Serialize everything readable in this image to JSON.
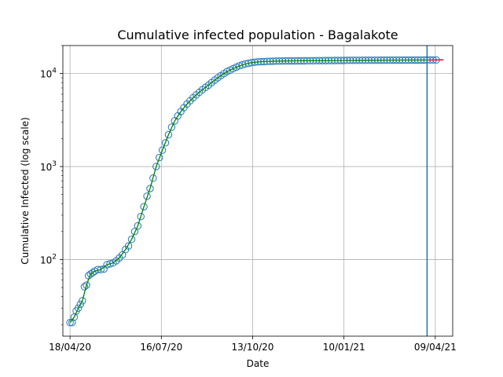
{
  "chart_data": {
    "type": "scatter",
    "title": "Cumulative infected population - Bagalakote",
    "xlabel": "Date",
    "ylabel": "Cumulative Infected (log scale)",
    "yscale": "log",
    "grid": true,
    "xlim": [
      "2020-04-11",
      "2021-04-26"
    ],
    "ylim": [
      15,
      20000
    ],
    "x_tick_labels": [
      "18/04/20",
      "16/07/20",
      "13/10/20",
      "10/01/21",
      "09/04/21"
    ],
    "x_ticks": [
      "2020-04-18",
      "2020-07-16",
      "2020-10-13",
      "2021-01-10",
      "2021-04-09"
    ],
    "y_ticks": [
      {
        "value": 100,
        "base": "10",
        "exp": "2"
      },
      {
        "value": 1000,
        "base": "10",
        "exp": "3"
      },
      {
        "value": 10000,
        "base": "10",
        "exp": "4"
      }
    ],
    "vertical_line": {
      "x": "2021-04-01",
      "color": "#1f77b4"
    },
    "series": [
      {
        "kind": "observed-markers",
        "marker": "open-circle",
        "color": "#1f77b4",
        "points": [
          [
            "2020-04-18",
            21
          ],
          [
            "2020-04-20",
            21
          ],
          [
            "2020-04-22",
            24
          ],
          [
            "2020-04-24",
            28
          ],
          [
            "2020-04-26",
            30
          ],
          [
            "2020-04-28",
            33
          ],
          [
            "2020-04-30",
            36
          ],
          [
            "2020-05-02",
            51
          ],
          [
            "2020-05-04",
            53
          ],
          [
            "2020-05-06",
            67
          ],
          [
            "2020-05-08",
            70
          ],
          [
            "2020-05-10",
            72
          ],
          [
            "2020-05-12",
            75
          ],
          [
            "2020-05-15",
            78
          ],
          [
            "2020-05-18",
            78
          ],
          [
            "2020-05-21",
            79
          ],
          [
            "2020-05-24",
            88
          ],
          [
            "2020-05-27",
            90
          ],
          [
            "2020-05-30",
            92
          ],
          [
            "2020-06-02",
            97
          ],
          [
            "2020-06-05",
            104
          ],
          [
            "2020-06-08",
            112
          ],
          [
            "2020-06-11",
            128
          ],
          [
            "2020-06-14",
            140
          ],
          [
            "2020-06-17",
            165
          ],
          [
            "2020-06-20",
            200
          ],
          [
            "2020-06-23",
            230
          ],
          [
            "2020-06-26",
            290
          ],
          [
            "2020-06-29",
            370
          ],
          [
            "2020-07-02",
            480
          ],
          [
            "2020-07-05",
            580
          ],
          [
            "2020-07-08",
            750
          ],
          [
            "2020-07-11",
            1000
          ],
          [
            "2020-07-14",
            1250
          ],
          [
            "2020-07-17",
            1500
          ],
          [
            "2020-07-20",
            1800
          ],
          [
            "2020-07-23",
            2200
          ],
          [
            "2020-07-26",
            2650
          ],
          [
            "2020-07-29",
            3100
          ],
          [
            "2020-08-01",
            3500
          ],
          [
            "2020-08-04",
            3900
          ],
          [
            "2020-08-07",
            4300
          ],
          [
            "2020-08-10",
            4700
          ],
          [
            "2020-08-13",
            5100
          ],
          [
            "2020-08-16",
            5500
          ],
          [
            "2020-08-19",
            5900
          ],
          [
            "2020-08-22",
            6300
          ],
          [
            "2020-08-25",
            6700
          ],
          [
            "2020-08-28",
            7100
          ],
          [
            "2020-08-31",
            7500
          ],
          [
            "2020-09-03",
            8000
          ],
          [
            "2020-09-06",
            8500
          ],
          [
            "2020-09-09",
            9000
          ],
          [
            "2020-09-12",
            9500
          ],
          [
            "2020-09-15",
            10000
          ],
          [
            "2020-09-18",
            10500
          ],
          [
            "2020-09-21",
            10900
          ],
          [
            "2020-09-24",
            11300
          ],
          [
            "2020-09-27",
            11700
          ],
          [
            "2020-09-30",
            12100
          ],
          [
            "2020-10-03",
            12400
          ],
          [
            "2020-10-06",
            12700
          ],
          [
            "2020-10-09",
            12900
          ],
          [
            "2020-10-12",
            13100
          ],
          [
            "2020-10-15",
            13250
          ],
          [
            "2020-10-18",
            13350
          ],
          [
            "2020-10-21",
            13400
          ],
          [
            "2020-10-24",
            13450
          ],
          [
            "2020-10-27",
            13500
          ],
          [
            "2020-10-30",
            13550
          ],
          [
            "2020-11-02",
            13580
          ],
          [
            "2020-11-05",
            13600
          ],
          [
            "2020-11-08",
            13620
          ],
          [
            "2020-11-11",
            13640
          ],
          [
            "2020-11-14",
            13660
          ],
          [
            "2020-11-17",
            13670
          ],
          [
            "2020-11-20",
            13680
          ],
          [
            "2020-11-23",
            13690
          ],
          [
            "2020-11-26",
            13700
          ],
          [
            "2020-11-29",
            13710
          ],
          [
            "2020-12-02",
            13720
          ],
          [
            "2020-12-05",
            13730
          ],
          [
            "2020-12-08",
            13740
          ],
          [
            "2020-12-11",
            13750
          ],
          [
            "2020-12-14",
            13760
          ],
          [
            "2020-12-17",
            13770
          ],
          [
            "2020-12-20",
            13780
          ],
          [
            "2020-12-23",
            13790
          ],
          [
            "2020-12-26",
            13800
          ],
          [
            "2020-12-29",
            13810
          ],
          [
            "2021-01-01",
            13820
          ],
          [
            "2021-01-04",
            13830
          ],
          [
            "2021-01-07",
            13840
          ],
          [
            "2021-01-10",
            13850
          ],
          [
            "2021-01-13",
            13860
          ],
          [
            "2021-01-16",
            13870
          ],
          [
            "2021-01-19",
            13875
          ],
          [
            "2021-01-22",
            13880
          ],
          [
            "2021-01-25",
            13885
          ],
          [
            "2021-01-28",
            13890
          ],
          [
            "2021-01-31",
            13895
          ],
          [
            "2021-02-03",
            13900
          ],
          [
            "2021-02-06",
            13905
          ],
          [
            "2021-02-09",
            13910
          ],
          [
            "2021-02-12",
            13915
          ],
          [
            "2021-02-15",
            13920
          ],
          [
            "2021-02-18",
            13925
          ],
          [
            "2021-02-21",
            13930
          ],
          [
            "2021-02-24",
            13935
          ],
          [
            "2021-02-27",
            13940
          ],
          [
            "2021-03-02",
            13945
          ],
          [
            "2021-03-05",
            13950
          ],
          [
            "2021-03-08",
            13955
          ],
          [
            "2021-03-11",
            13960
          ],
          [
            "2021-03-14",
            13965
          ],
          [
            "2021-03-17",
            13970
          ],
          [
            "2021-03-20",
            13975
          ],
          [
            "2021-03-23",
            13980
          ],
          [
            "2021-03-26",
            13985
          ],
          [
            "2021-03-29",
            13990
          ],
          [
            "2021-04-01",
            13995
          ],
          [
            "2021-04-04",
            14000
          ],
          [
            "2021-04-07",
            14005
          ],
          [
            "2021-04-10",
            14010
          ]
        ]
      },
      {
        "kind": "fitted-curve",
        "color": "#008000",
        "points": [
          [
            "2020-04-18",
            21
          ],
          [
            "2020-04-22",
            24
          ],
          [
            "2020-04-26",
            30
          ],
          [
            "2020-04-30",
            36
          ],
          [
            "2020-05-04",
            53
          ],
          [
            "2020-05-08",
            70
          ],
          [
            "2020-05-12",
            75
          ],
          [
            "2020-05-18",
            78
          ],
          [
            "2020-05-24",
            88
          ],
          [
            "2020-05-30",
            92
          ],
          [
            "2020-06-05",
            104
          ],
          [
            "2020-06-11",
            128
          ],
          [
            "2020-06-17",
            165
          ],
          [
            "2020-06-23",
            230
          ],
          [
            "2020-06-29",
            370
          ],
          [
            "2020-07-05",
            580
          ],
          [
            "2020-07-11",
            1000
          ],
          [
            "2020-07-17",
            1500
          ],
          [
            "2020-07-23",
            2200
          ],
          [
            "2020-07-29",
            3100
          ],
          [
            "2020-08-04",
            3900
          ],
          [
            "2020-08-10",
            4700
          ],
          [
            "2020-08-16",
            5500
          ],
          [
            "2020-08-22",
            6300
          ],
          [
            "2020-08-28",
            7100
          ],
          [
            "2020-09-03",
            8000
          ],
          [
            "2020-09-09",
            9000
          ],
          [
            "2020-09-15",
            10000
          ],
          [
            "2020-09-21",
            10900
          ],
          [
            "2020-09-27",
            11700
          ],
          [
            "2020-10-03",
            12400
          ],
          [
            "2020-10-09",
            12900
          ],
          [
            "2020-10-15",
            13250
          ],
          [
            "2020-10-24",
            13450
          ],
          [
            "2020-11-05",
            13600
          ],
          [
            "2020-11-20",
            13680
          ],
          [
            "2020-12-05",
            13730
          ],
          [
            "2020-12-20",
            13780
          ],
          [
            "2021-01-04",
            13830
          ],
          [
            "2021-01-19",
            13875
          ],
          [
            "2021-02-03",
            13900
          ],
          [
            "2021-02-18",
            13925
          ],
          [
            "2021-03-05",
            13950
          ],
          [
            "2021-03-20",
            13975
          ],
          [
            "2021-04-01",
            13995
          ]
        ]
      },
      {
        "kind": "forecast-line",
        "color": "#e6194b",
        "points": [
          [
            "2021-04-01",
            13995
          ],
          [
            "2021-04-17",
            14030
          ]
        ]
      }
    ]
  }
}
